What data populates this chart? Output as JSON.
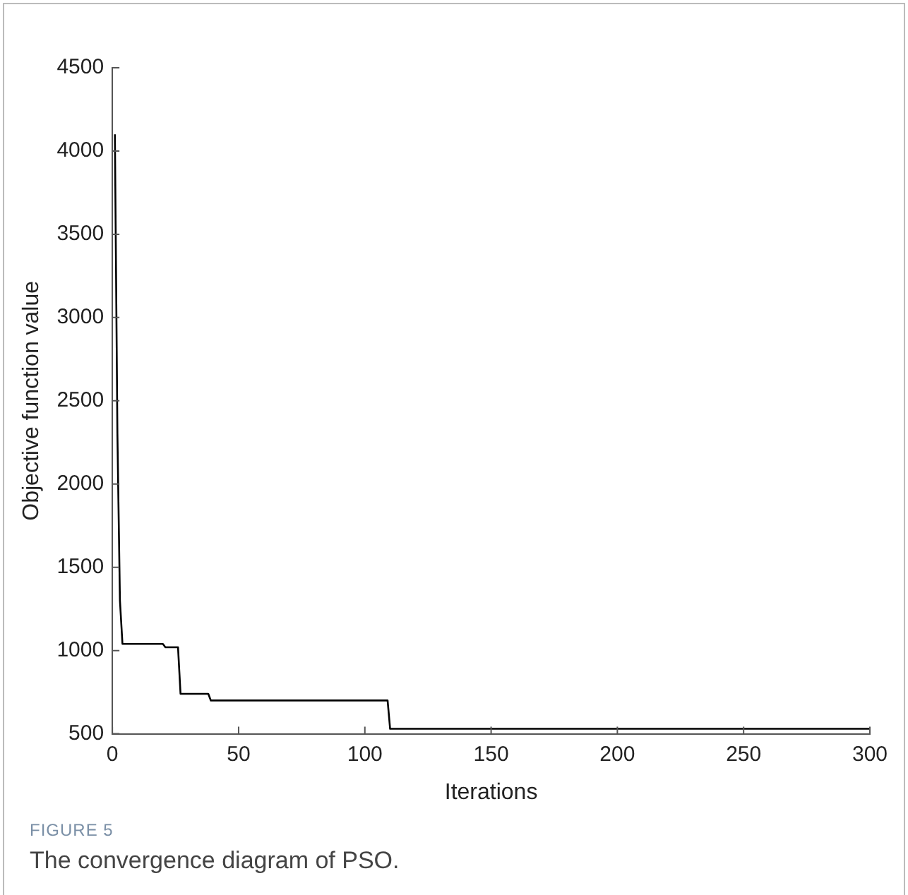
{
  "chart_data": {
    "type": "line",
    "title": "FIGURE 5",
    "subtitle": "The convergence diagram of PSO.",
    "xlabel": "Iterations",
    "ylabel": "Objective function value",
    "series": [
      {
        "color": "#000000",
        "x": [
          1,
          2,
          3,
          4,
          20,
          21,
          26,
          27,
          38,
          39,
          109,
          110,
          300
        ],
        "values": [
          4100,
          2300,
          1300,
          1040,
          1040,
          1020,
          1020,
          740,
          740,
          700,
          700,
          530,
          530
        ]
      }
    ],
    "xlim": [
      0,
      300
    ],
    "xticks": [
      0,
      50,
      100,
      150,
      200,
      250,
      300
    ],
    "ylim": [
      500,
      4500
    ],
    "yticks": [
      500,
      1000,
      1500,
      2000,
      2500,
      3000,
      3500,
      4000,
      4500
    ],
    "grid": false,
    "legend": false,
    "marker": "none",
    "line_style": "solid"
  }
}
